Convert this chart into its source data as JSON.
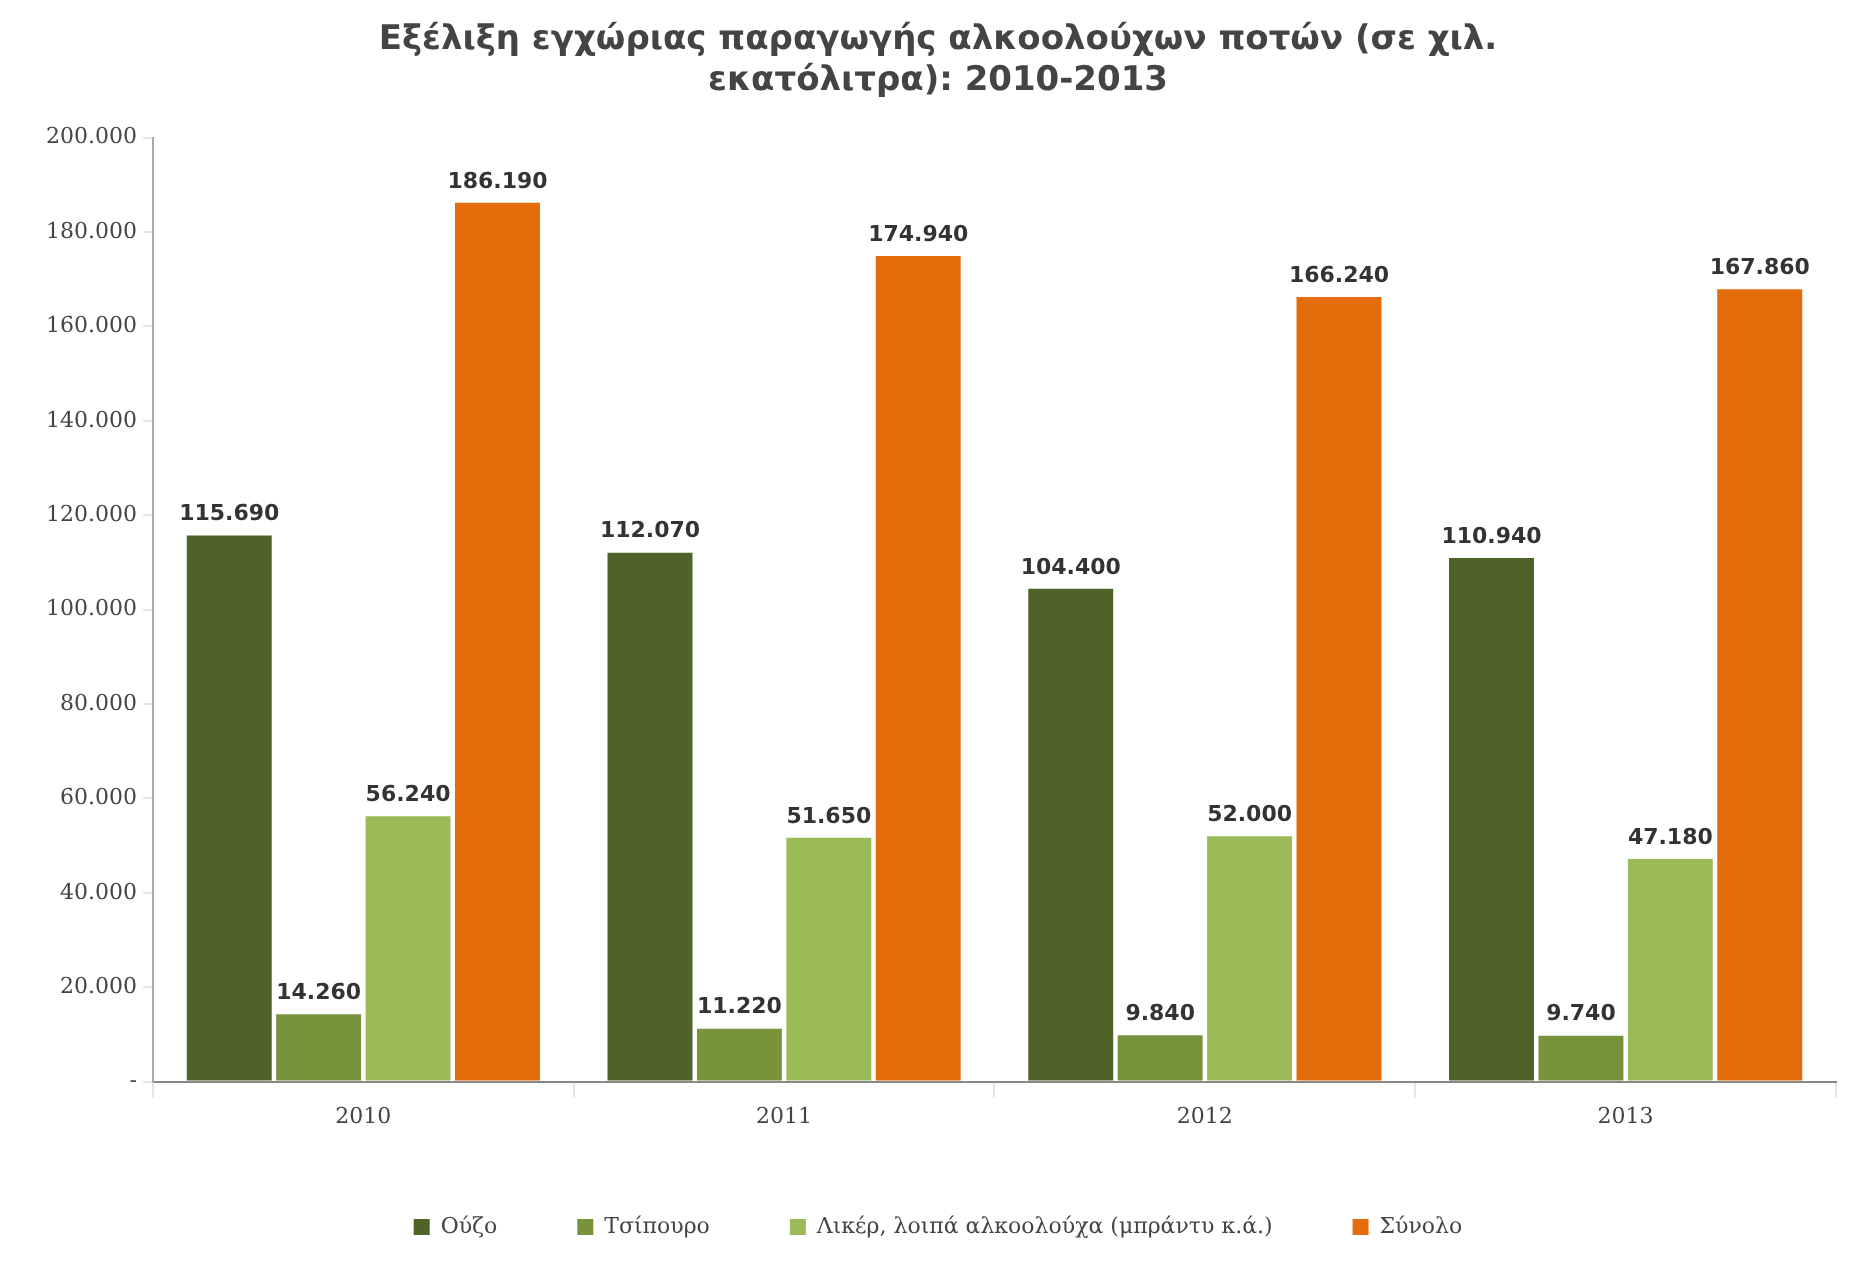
{
  "chart_data": {
    "type": "bar",
    "title": [
      "Εξέλιξη εγχώριας παραγωγής αλκοολούχων ποτών (σε χιλ.",
      "εκατόλιτρα): 2010-2013"
    ],
    "categories": [
      "2010",
      "2011",
      "2012",
      "2013"
    ],
    "series": [
      {
        "name": "Ούζο",
        "color": "#4f6228",
        "values": [
          115690,
          112070,
          104400,
          110940
        ],
        "value_labels": [
          "115.690",
          "112.070",
          "104.400",
          "110.940"
        ]
      },
      {
        "name": "Τσίπουρο",
        "color": "#77933c",
        "values": [
          14260,
          11220,
          9840,
          9740
        ],
        "value_labels": [
          "14.260",
          "11.220",
          "9.840",
          "9.740"
        ]
      },
      {
        "name": "Λικέρ, λοιπά αλκοολούχα (μπράντυ κ.ά.)",
        "color": "#9bbb59",
        "values": [
          56240,
          51650,
          52000,
          47180
        ],
        "value_labels": [
          "56.240",
          "51.650",
          "52.000",
          "47.180"
        ]
      },
      {
        "name": "Σύνολο",
        "color": "#e46c0a",
        "values": [
          186190,
          174940,
          166240,
          167860
        ],
        "value_labels": [
          "186.190",
          "174.940",
          "166.240",
          "167.860"
        ]
      }
    ],
    "ylim": [
      0,
      200000
    ],
    "yticks": [
      {
        "value": 0,
        "label": "-"
      },
      {
        "value": 20000,
        "label": "20.000"
      },
      {
        "value": 40000,
        "label": "40.000"
      },
      {
        "value": 60000,
        "label": "60.000"
      },
      {
        "value": 80000,
        "label": "80.000"
      },
      {
        "value": 100000,
        "label": "100.000"
      },
      {
        "value": 120000,
        "label": "120.000"
      },
      {
        "value": 140000,
        "label": "140.000"
      },
      {
        "value": 160000,
        "label": "160.000"
      },
      {
        "value": 180000,
        "label": "180.000"
      },
      {
        "value": 200000,
        "label": "200.000"
      }
    ],
    "grid": false,
    "legend": "bottom"
  }
}
